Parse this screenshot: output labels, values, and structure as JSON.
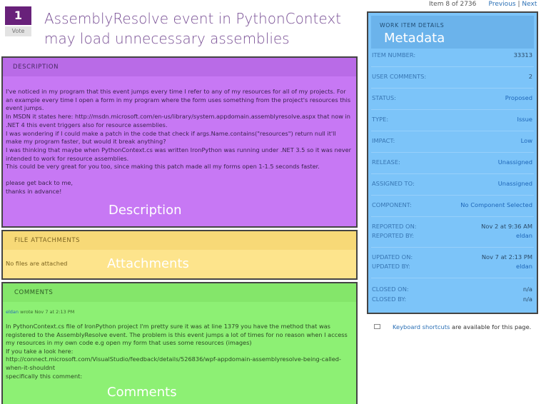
{
  "pager": {
    "position_text": "Item 8 of 2736",
    "previous_label": "Previous",
    "separator": "|",
    "next_label": "Next"
  },
  "vote": {
    "count": "1",
    "button_label": "Vote"
  },
  "title": "AssemblyResolve event in PythonContext may load unnecessary assemblies",
  "description": {
    "heading": "DESCRIPTION",
    "overlay": "Description",
    "paragraphs": [
      "I've noticed in my program that this event jumps every time I refer to any of my resources for all of my projects. For an example every time I open a form in my program where the form uses something from the project's resources this event jumps.",
      "In MSDN it states here: http://msdn.microsoft.com/en-us/library/system.appdomain.assemblyresolve.aspx that now in .NET 4 this event triggers also for resource assemblies.",
      "I was wondering if I could make a patch in the code that check if args.Name.contains(\"resources\") return null it'll make my program faster, but would it break anything?",
      "I was thinking that maybe when PythonContext.cs was written IronPython was running under .NET 3.5 so it was never intended to work for resource assemblies.",
      "This could be very great for you too, since making this patch made all my forms open 1-1.5 seconds faster."
    ],
    "closing": [
      "please get back to me,",
      "thanks in advance!"
    ]
  },
  "attachments": {
    "heading": "FILE ATTACHMENTS",
    "overlay": "Attachments",
    "empty_text": "No files are attached"
  },
  "comments": {
    "heading": "COMMENTS",
    "overlay": "Comments",
    "items": [
      {
        "author": "eldan",
        "meta": "wrote Nov 7 at 2:13 PM",
        "paragraphs": [
          "In PythonContext.cs file of IronPython project I'm pretty sure it was at line 1379 you have the method that was registered to the AssemblyResolve event. The problem is this event jumps a lot of times for no reason when I access my resources in my own code e.g open my form that uses some resources (images)",
          "If you take a look here:",
          "http://connect.microsoft.com/VisualStudio/feedback/details/526836/wpf-appdomain-assemblyresolve-being-called-when-it-shouldnt"
        ],
        "tail": "specifically this comment:"
      }
    ]
  },
  "metadata": {
    "heading": "WORK ITEM DETAILS",
    "overlay": "Metadata",
    "item_number": {
      "label": "ITEM NUMBER:",
      "value": "33313"
    },
    "user_comments": {
      "label": "USER COMMENTS:",
      "value": "2"
    },
    "status": {
      "label": "STATUS:",
      "value": "Proposed"
    },
    "type": {
      "label": "TYPE:",
      "value": "Issue"
    },
    "impact": {
      "label": "IMPACT:",
      "value": "Low"
    },
    "release": {
      "label": "RELEASE:",
      "value": "Unassigned"
    },
    "assigned_to": {
      "label": "ASSIGNED TO:",
      "value": "Unassigned"
    },
    "component": {
      "label": "COMPONENT:",
      "value": "No Component Selected"
    },
    "reported_on": {
      "label": "REPORTED ON:",
      "value": "Nov 2 at 9:36 AM"
    },
    "reported_by": {
      "label": "REPORTED BY:",
      "value": "eldan"
    },
    "updated_on": {
      "label": "UPDATED ON:",
      "value": "Nov 7 at 2:13 PM"
    },
    "updated_by": {
      "label": "UPDATED BY:",
      "value": "eldan"
    },
    "closed_on": {
      "label": "CLOSED ON:",
      "value": "n/a"
    },
    "closed_by": {
      "label": "CLOSED BY:",
      "value": "n/a"
    }
  },
  "keyboard": {
    "icon": "keyboard-icon",
    "link_text": "Keyboard shortcuts",
    "rest_text": " are available for this page."
  }
}
